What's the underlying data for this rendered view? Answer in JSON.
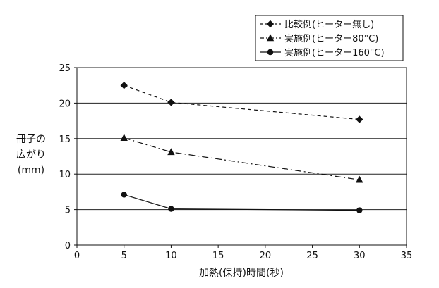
{
  "chart_data": {
    "type": "line",
    "title": "",
    "xlabel": "加熱(保持)時間(秒)",
    "ylabel_lines": [
      "冊子の",
      "広がり",
      "(mm)"
    ],
    "xlim": [
      0,
      35
    ],
    "ylim": [
      0,
      25
    ],
    "xticks": [
      0,
      5,
      10,
      15,
      20,
      25,
      30,
      35
    ],
    "yticks": [
      0,
      5,
      10,
      15,
      20,
      25
    ],
    "grid": "horizontal",
    "legend_position": "top-right",
    "series": [
      {
        "name": "比較例(ヒーター無し)",
        "marker": "diamond",
        "line_style": "dashed",
        "points": [
          [
            5,
            22.5
          ],
          [
            10,
            20.1
          ],
          [
            30,
            17.7
          ]
        ]
      },
      {
        "name": "実施例(ヒーター80°C)",
        "marker": "triangle",
        "line_style": "dash-dot",
        "points": [
          [
            5,
            15.1
          ],
          [
            10,
            13.1
          ],
          [
            30,
            9.2
          ]
        ]
      },
      {
        "name": "実施例(ヒーター160°C)",
        "marker": "circle",
        "line_style": "solid",
        "points": [
          [
            5,
            7.1
          ],
          [
            10,
            5.1
          ],
          [
            30,
            4.9
          ]
        ]
      }
    ]
  }
}
